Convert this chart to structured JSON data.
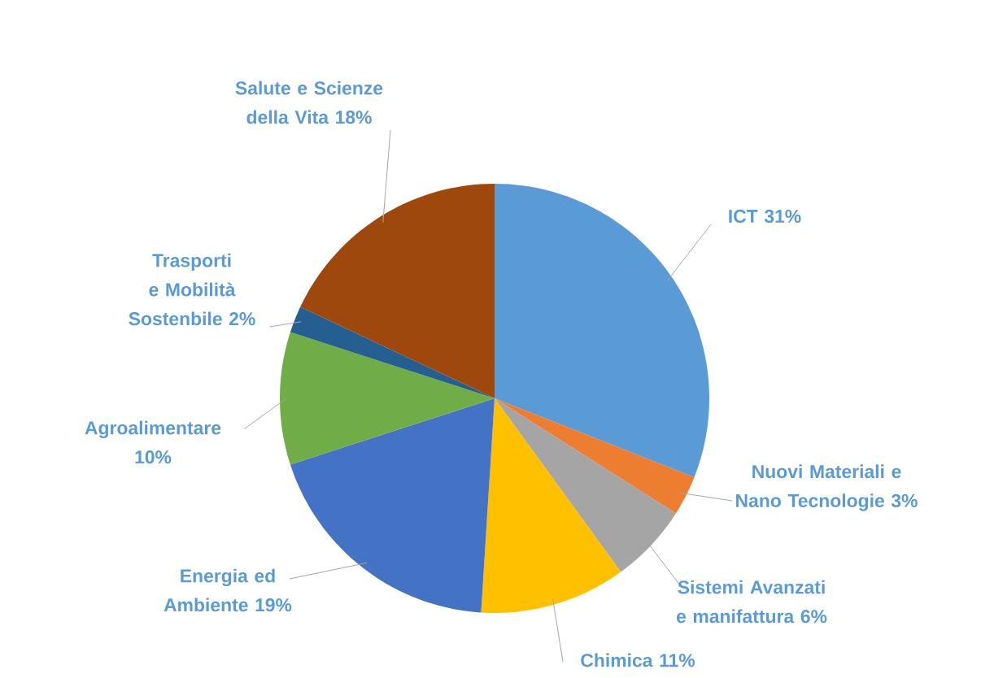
{
  "chart_data": {
    "type": "pie",
    "categories": [
      "ICT",
      "Nuovi Materiali e Nano Tecnologie",
      "Sistemi Avanzati e manifattura",
      "Chimica",
      "Energia ed Ambiente",
      "Agroalimentare",
      "Trasporti e Mobilità Sostenbile",
      "Salute e Scienze della Vita"
    ],
    "values": [
      31,
      3,
      6,
      11,
      19,
      10,
      2,
      18
    ],
    "value_labels": [
      "31%",
      "3%",
      "6%",
      "11%",
      "19%",
      "10%",
      "2%",
      "18%"
    ],
    "colors": [
      "#5b9bd5",
      "#ed7d31",
      "#a5a5a5",
      "#ffc000",
      "#4472c4",
      "#70ad47",
      "#255e91",
      "#9e480e"
    ]
  }
}
